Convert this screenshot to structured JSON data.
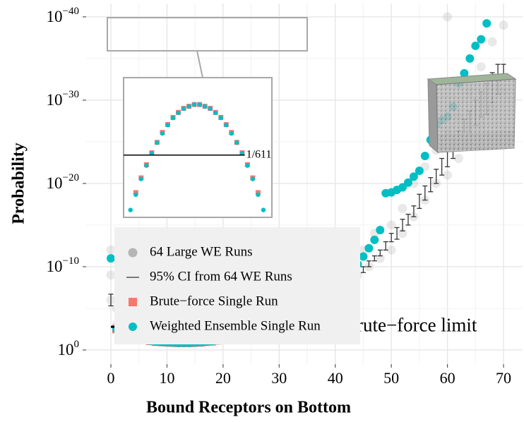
{
  "chart_data": [
    {
      "type": "scatter",
      "xlabel": "Bound Receptors on Bottom",
      "ylabel": "Probability",
      "xlim": [
        -4.41,
        73.4
      ],
      "ylim": [
        50,
        2.5e-42
      ],
      "scale_y": "log",
      "grid": true,
      "minor_grid": true,
      "legend_position": "bottom-left",
      "xticks": [
        0,
        10,
        20,
        30,
        40,
        50,
        60,
        70
      ],
      "yticks": [
        {
          "value": 1,
          "label": "10",
          "exponent": "0"
        },
        {
          "value": 1e-10,
          "label": "10",
          "exponent": "−10"
        },
        {
          "value": 1e-20,
          "label": "10",
          "exponent": "−20"
        },
        {
          "value": 1e-30,
          "label": "10",
          "exponent": "−30"
        },
        {
          "value": 1e-40,
          "label": "10",
          "exponent": "−40"
        }
      ],
      "limit": {
        "label": "Brute−force limit",
        "value": 0.001637,
        "xrange": [
          0,
          39.4
        ]
      },
      "series": [
        {
          "name": "64 Large WE Runs",
          "color": "#b5b5b5",
          "marker": "cloud",
          "x": [
            0,
            0,
            0,
            1,
            1,
            2,
            3,
            5,
            8,
            12,
            16,
            20,
            24,
            26,
            28,
            30,
            32,
            34,
            36,
            38,
            40,
            42,
            44,
            45,
            46,
            47,
            48,
            50,
            50,
            52,
            52,
            54,
            54,
            56,
            56,
            58,
            58,
            60,
            60,
            60,
            62,
            62,
            64,
            64,
            66,
            66,
            68,
            68,
            70,
            70
          ],
          "values": [
            1e-06,
            1e-09,
            1e-12,
            0.001,
            1e-05,
            0.005,
            0.01,
            0.03,
            0.05,
            0.1,
            0.1,
            0.03,
            0.005,
            0.001,
            0.001,
            0.0003,
            5e-05,
            1e-05,
            2e-06,
            5e-07,
            1e-07,
            1e-08,
            1e-09,
            1e-12,
            1e-10,
            1e-14,
            1e-11,
            1e-12,
            1e-15,
            1e-14,
            1e-17,
            1e-16,
            1e-20,
            1e-18,
            1e-22,
            1e-20,
            1e-24,
            1e-21,
            1e-26,
            1e-40,
            1e-23,
            1e-28,
            1e-25,
            1e-31,
            1e-27,
            1e-34,
            1e-29,
            1e-37,
            1e-31,
            1e-39
          ]
        },
        {
          "name": "95% CI from 64 WE Runs",
          "color": "#333333",
          "marker": "errorbar",
          "x": [
            0,
            40,
            41,
            42,
            43,
            44,
            45,
            46,
            47,
            48,
            49,
            50,
            51,
            52,
            53,
            54,
            55,
            56,
            57,
            58,
            59,
            60,
            61,
            62,
            63,
            64,
            65,
            66,
            67,
            68,
            69,
            70
          ],
          "values": [
            1e-06,
            2e-07,
            5e-08,
            2e-08,
            5e-09,
            1e-09,
            2e-10,
            5e-11,
            1e-11,
            2e-12,
            5e-13,
            5e-14,
            1e-14,
            1e-15,
            2e-16,
            2e-17,
            2e-18,
            2e-19,
            2e-20,
            2e-21,
            2e-22,
            1e-23,
            1e-24,
            1e-25,
            1e-26,
            1e-27,
            1e-28,
            1e-29,
            1e-30,
            5e-32,
            5e-33,
            2e-34
          ],
          "lower": [
            2e-07,
            1e-07,
            2e-08,
            1e-08,
            2e-09,
            5e-10,
            1e-10,
            2e-11,
            5e-12,
            1e-12,
            1e-13,
            1e-14,
            2e-15,
            2e-16,
            5e-17,
            5e-18,
            2e-19,
            2e-20,
            2e-21,
            2e-22,
            1e-23,
            5e-25,
            5e-26,
            5e-27,
            2e-28,
            2e-29,
            1e-30,
            1e-31,
            1e-32,
            5e-34,
            5e-35,
            5e-35
          ],
          "upper": [
            5e-06,
            5e-07,
            1e-07,
            5e-08,
            1e-08,
            2e-09,
            5e-10,
            1e-10,
            2e-11,
            5e-12,
            1e-12,
            1e-13,
            5e-14,
            5e-15,
            1e-15,
            1e-16,
            1e-17,
            1e-18,
            1e-19,
            1e-20,
            1e-21,
            1e-22,
            1e-23,
            1e-24,
            1e-25,
            1e-26,
            1e-27,
            1e-28,
            5e-29,
            2e-30,
            2e-31,
            1e-33
          ]
        },
        {
          "name": "Brute−force Single Run",
          "color": "#f8766d",
          "marker": "square",
          "x": [
            1,
            2,
            3,
            4,
            5,
            6,
            7,
            8,
            9,
            10,
            11,
            12,
            13,
            14,
            15,
            16,
            17,
            18,
            19,
            20,
            21,
            22,
            23,
            24,
            25,
            26,
            27
          ],
          "values": [
            0.003,
            0.01,
            0.02,
            0.03,
            0.05,
            0.06,
            0.08,
            0.1,
            0.11,
            0.12,
            0.13,
            0.14,
            0.14,
            0.14,
            0.13,
            0.12,
            0.1,
            0.09,
            0.07,
            0.05,
            0.04,
            0.03,
            0.02,
            0.012,
            0.007,
            0.004,
            0.002
          ]
        },
        {
          "name": "Weighted Ensemble Single Run",
          "color": "#00bfc4",
          "marker": "circle",
          "x": [
            0,
            1,
            2,
            3,
            4,
            5,
            6,
            7,
            8,
            9,
            10,
            11,
            12,
            13,
            14,
            15,
            16,
            17,
            18,
            19,
            20,
            21,
            22,
            23,
            24,
            25,
            26,
            27,
            28,
            29,
            30,
            31,
            32,
            33,
            34,
            35,
            36,
            37,
            38,
            39,
            40,
            41,
            42,
            43,
            44,
            45,
            46,
            47,
            48,
            49,
            50,
            51,
            52,
            53,
            54,
            55,
            56,
            57,
            58,
            59,
            60,
            61,
            62,
            63,
            64,
            65,
            66,
            67
          ],
          "values": [
            1e-11,
            0.003,
            0.01,
            0.02,
            0.03,
            0.05,
            0.06,
            0.08,
            0.1,
            0.11,
            0.12,
            0.13,
            0.14,
            0.14,
            0.14,
            0.13,
            0.12,
            0.1,
            0.09,
            0.07,
            0.05,
            0.04,
            0.03,
            0.02,
            0.012,
            0.007,
            0.004,
            0.002,
            0.0008,
            0.0003,
            0.0001,
            5e-05,
            2e-05,
            8e-06,
            3e-06,
            2e-06,
            1e-06,
            5e-07,
            2.5e-07,
            1e-07,
            3e-08,
            8e-09,
            1.5e-09,
            3e-10,
            5e-11,
            6e-12,
            6e-13,
            6e-14,
            4e-15,
            1.5e-19,
            1.2e-19,
            6e-20,
            3e-20,
            8e-21,
            1.5e-21,
            3e-22,
            5e-24,
            6e-26,
            1e-27,
            2.5e-28,
            1e-28,
            6e-30,
            1e-32,
            6e-34,
            1e-35,
            3e-37,
            5e-38,
            6e-40
          ]
        }
      ]
    },
    {
      "type": "scatter",
      "xlim": [
        -0.3,
        27.6
      ],
      "ylim": [
        6.8e-06,
        1.5
      ],
      "scale_y": "log",
      "limit": {
        "label": "1/611",
        "value": 0.001637,
        "xrange": [
          -0.3,
          22.5
        ]
      },
      "series": [
        {
          "color": "#f8766d",
          "marker": "square",
          "x": [
            2,
            3,
            4,
            5,
            6,
            7,
            8,
            9,
            10,
            11,
            12,
            13,
            14,
            15,
            16,
            17,
            18,
            19,
            20,
            21,
            22,
            23,
            24,
            25
          ],
          "values": [
            6e-05,
            0.00022,
            0.0007,
            0.002,
            0.005,
            0.012,
            0.024,
            0.045,
            0.07,
            0.1,
            0.12,
            0.14,
            0.14,
            0.12,
            0.1,
            0.07,
            0.045,
            0.024,
            0.012,
            0.005,
            0.002,
            0.0007,
            0.00022,
            6e-05
          ]
        },
        {
          "color": "#00bfc4",
          "marker": "circle",
          "x": [
            1,
            2,
            3,
            4,
            5,
            6,
            7,
            8,
            9,
            10,
            11,
            12,
            13,
            14,
            15,
            16,
            17,
            18,
            19,
            20,
            21,
            22,
            23,
            24,
            25,
            26
          ],
          "values": [
            1.3e-05,
            5e-05,
            0.0002,
            0.00065,
            0.0019,
            0.0049,
            0.011,
            0.023,
            0.043,
            0.068,
            0.098,
            0.12,
            0.14,
            0.14,
            0.12,
            0.098,
            0.068,
            0.043,
            0.023,
            0.011,
            0.0049,
            0.0019,
            0.00065,
            0.0002,
            5e-05,
            1.3e-05
          ]
        }
      ]
    }
  ]
}
